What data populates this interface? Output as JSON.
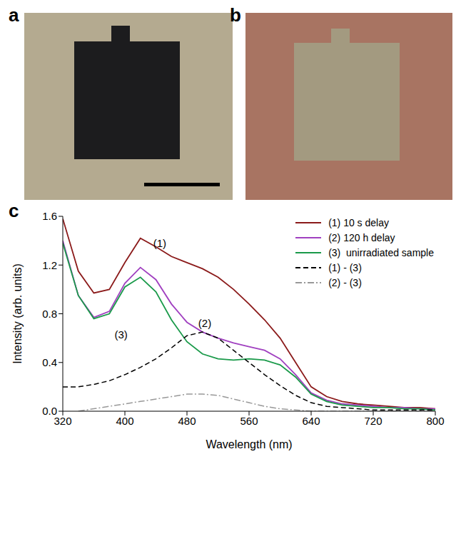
{
  "panels": [
    {
      "label": "a"
    },
    {
      "label": "b"
    },
    {
      "label": "c"
    }
  ],
  "chart_data": {
    "type": "line",
    "x_label": "Wavelength (nm)",
    "y_label": "Intensity (arb. units)",
    "x": [
      320,
      340,
      360,
      380,
      400,
      420,
      440,
      460,
      480,
      500,
      520,
      540,
      560,
      580,
      600,
      620,
      640,
      660,
      680,
      700,
      720,
      740,
      760,
      780,
      800
    ],
    "series": [
      {
        "name": "(1) 10 s delay",
        "color": "#8b1a1a",
        "line_style": "solid",
        "values": [
          1.58,
          1.15,
          0.97,
          1.0,
          1.22,
          1.42,
          1.35,
          1.27,
          1.22,
          1.17,
          1.1,
          1.0,
          0.88,
          0.75,
          0.6,
          0.4,
          0.2,
          0.12,
          0.08,
          0.06,
          0.05,
          0.04,
          0.03,
          0.03,
          0.02
        ]
      },
      {
        "name": "(2) 120 h delay",
        "color": "#a040c0",
        "line_style": "solid",
        "values": [
          1.4,
          0.95,
          0.77,
          0.82,
          1.05,
          1.18,
          1.08,
          0.88,
          0.73,
          0.65,
          0.6,
          0.56,
          0.53,
          0.5,
          0.43,
          0.3,
          0.15,
          0.09,
          0.06,
          0.05,
          0.04,
          0.03,
          0.03,
          0.02,
          0.02
        ]
      },
      {
        "name": "(3)  unirradiated sample",
        "color": "#1a9a4a",
        "line_style": "solid",
        "values": [
          1.38,
          0.95,
          0.76,
          0.8,
          1.02,
          1.1,
          0.98,
          0.75,
          0.57,
          0.47,
          0.43,
          0.42,
          0.43,
          0.42,
          0.38,
          0.28,
          0.14,
          0.08,
          0.05,
          0.04,
          0.03,
          0.03,
          0.02,
          0.02,
          0.01
        ]
      },
      {
        "name": "(1) - (3)",
        "color": "#000000",
        "line_style": "dashed",
        "values": [
          0.2,
          0.2,
          0.22,
          0.25,
          0.3,
          0.36,
          0.43,
          0.52,
          0.62,
          0.65,
          0.6,
          0.5,
          0.4,
          0.3,
          0.21,
          0.13,
          0.07,
          0.04,
          0.03,
          0.02,
          0.01,
          0.01,
          0.01,
          0.01,
          0.01
        ]
      },
      {
        "name": "(2) - (3)",
        "color": "#999999",
        "line_style": "dashdot",
        "values": [
          null,
          0.0,
          0.02,
          0.04,
          0.06,
          0.08,
          0.1,
          0.12,
          0.14,
          0.14,
          0.13,
          0.1,
          0.07,
          0.04,
          0.02,
          0.01,
          0.0,
          0.0,
          0.0,
          0.0,
          0.0,
          0.0,
          0.0,
          0.0,
          0.0
        ]
      }
    ],
    "annotations": [
      {
        "text": "(1)",
        "x": 445,
        "y": 1.38
      },
      {
        "text": "(2)",
        "x": 503,
        "y": 0.72
      },
      {
        "text": "(3)",
        "x": 395,
        "y": 0.63
      }
    ],
    "xlim": [
      320,
      800
    ],
    "xticks": [
      320,
      400,
      480,
      560,
      640,
      720,
      800
    ],
    "ylim": [
      0,
      1.6
    ],
    "yticks": [
      {
        "value": 0,
        "label": "0.0"
      },
      0.4,
      0.8,
      1.2,
      1.6
    ],
    "grid": false,
    "legend": "top-right"
  }
}
